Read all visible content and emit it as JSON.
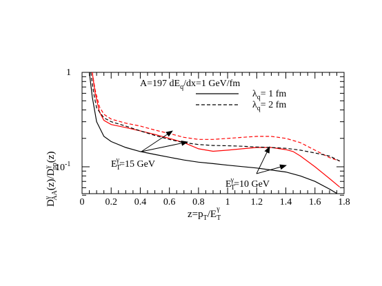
{
  "chart_data": {
    "type": "line",
    "yscale": "log",
    "xlim": [
      0,
      1.8
    ],
    "ylim": [
      0.05,
      1
    ],
    "xticks": [
      "0",
      "0.2",
      "0.4",
      "0.6",
      "0.8",
      "1",
      "1.2",
      "1.4",
      "1.6",
      "1.8"
    ],
    "xtick_values": [
      0,
      0.2,
      0.4,
      0.6,
      0.8,
      1.0,
      1.2,
      1.4,
      1.6,
      1.8
    ],
    "yticks": [
      {
        "value": 1,
        "base": "1",
        "exp": ""
      },
      {
        "value": 0.1,
        "base": "10",
        "exp": "-1"
      }
    ],
    "xlabel": {
      "base": "z=p",
      "sub1": "T",
      "mid": "/E",
      "sub2": "T",
      "sup2": "γ"
    },
    "ylabel": {
      "p1": "D",
      "sup1": "γ",
      "sub1": "AA",
      "p2": "(z)/D",
      "sup2": "γ",
      "sub2": "pp",
      "p3": "(z)"
    },
    "legend": {
      "title": "A=197  dE",
      "title_sub": "q",
      "title_rest": "/dx=1 GeV/fm",
      "entries": [
        {
          "style": "solid",
          "label": "λ",
          "label_sub": "q",
          "label_rest": "= 1 fm"
        },
        {
          "style": "dashed",
          "label": "λ",
          "label_sub": "q",
          "label_rest": "= 2 fm"
        }
      ],
      "placement": "top-right"
    },
    "annotations": [
      {
        "text": "E",
        "sub": "T",
        "sup": "γ",
        "rest": "=15 GeV"
      },
      {
        "text": "E",
        "sub": "T",
        "sup": "γ",
        "rest": "=10 GeV"
      }
    ],
    "colors": {
      "et15": "#ff0000",
      "et10": "#000000"
    },
    "series": [
      {
        "energy": "15 GeV",
        "lambda": "1 fm",
        "style": "solid",
        "color": "#ff0000",
        "x": [
          0.07,
          0.09,
          0.12,
          0.15,
          0.2,
          0.3,
          0.4,
          0.5,
          0.6,
          0.7,
          0.8,
          0.9,
          1.0,
          1.1,
          1.2,
          1.3,
          1.4,
          1.45,
          1.5,
          1.6,
          1.7,
          1.77
        ],
        "y": [
          1.0,
          0.6,
          0.38,
          0.31,
          0.28,
          0.26,
          0.24,
          0.22,
          0.2,
          0.18,
          0.155,
          0.146,
          0.15,
          0.155,
          0.16,
          0.16,
          0.152,
          0.145,
          0.13,
          0.1,
          0.075,
          0.061
        ]
      },
      {
        "energy": "15 GeV",
        "lambda": "2 fm",
        "style": "dashed",
        "color": "#ff0000",
        "x": [
          0.07,
          0.09,
          0.12,
          0.15,
          0.2,
          0.3,
          0.4,
          0.5,
          0.6,
          0.7,
          0.8,
          0.9,
          1.0,
          1.1,
          1.2,
          1.3,
          1.4,
          1.5,
          1.6,
          1.7,
          1.77
        ],
        "y": [
          1.0,
          0.65,
          0.43,
          0.36,
          0.32,
          0.29,
          0.27,
          0.245,
          0.225,
          0.205,
          0.195,
          0.195,
          0.2,
          0.205,
          0.21,
          0.21,
          0.2,
          0.18,
          0.15,
          0.125,
          0.115
        ]
      },
      {
        "energy": "10 GeV",
        "lambda": "1 fm",
        "style": "solid",
        "color": "#000000",
        "x": [
          0.05,
          0.07,
          0.1,
          0.15,
          0.2,
          0.3,
          0.4,
          0.5,
          0.6,
          0.7,
          0.8,
          0.9,
          1.0,
          1.2,
          1.4,
          1.5,
          1.6,
          1.7,
          1.78
        ],
        "y": [
          1.0,
          0.55,
          0.3,
          0.21,
          0.185,
          0.16,
          0.145,
          0.135,
          0.126,
          0.118,
          0.112,
          0.108,
          0.104,
          0.097,
          0.088,
          0.08,
          0.07,
          0.058,
          0.049
        ]
      },
      {
        "energy": "10 GeV",
        "lambda": "2 fm",
        "style": "dashed",
        "color": "#000000",
        "x": [
          0.06,
          0.08,
          0.1,
          0.15,
          0.2,
          0.3,
          0.4,
          0.5,
          0.6,
          0.7,
          0.8,
          0.9,
          1.0,
          1.1,
          1.2,
          1.3,
          1.4,
          1.5,
          1.6,
          1.7,
          1.77
        ],
        "y": [
          1.0,
          0.6,
          0.42,
          0.33,
          0.3,
          0.27,
          0.24,
          0.215,
          0.195,
          0.18,
          0.172,
          0.168,
          0.167,
          0.165,
          0.162,
          0.16,
          0.157,
          0.15,
          0.14,
          0.13,
          0.115
        ]
      }
    ]
  }
}
